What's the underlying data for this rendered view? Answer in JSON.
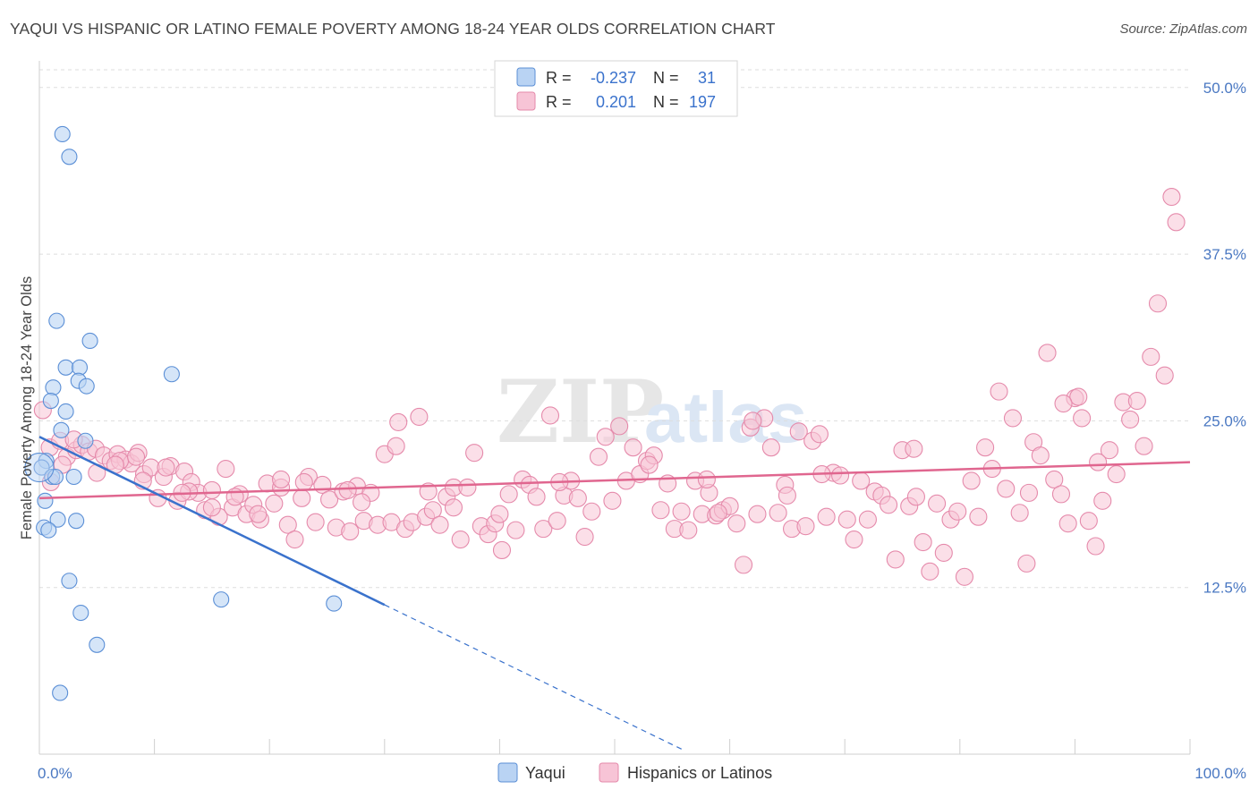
{
  "title": "YAQUI VS HISPANIC OR LATINO FEMALE POVERTY AMONG 18-24 YEAR OLDS CORRELATION CHART",
  "source": "Source: ZipAtlas.com",
  "watermark": {
    "zip": "ZIP",
    "atlas": "atlas"
  },
  "colors": {
    "yaqui_fill": "#b9d3f3",
    "yaqui_stroke": "#5b8fd6",
    "yaqui_line": "#3a72cc",
    "hisp_fill": "#f7c4d6",
    "hisp_stroke": "#e58aab",
    "hisp_line": "#e0668f",
    "axis_label_color": "#4a78c2"
  },
  "legend": {
    "rows": [
      {
        "r_label": "R =",
        "r_value": "-0.237",
        "n_label": "N =",
        "n_value": "31"
      },
      {
        "r_label": "R =",
        "r_value": "0.201",
        "n_label": "N =",
        "n_value": "197"
      }
    ]
  },
  "bottom_legend": [
    "Yaqui",
    "Hispanics or Latinos"
  ],
  "chart_data": {
    "type": "scatter",
    "ylabel": "Female Poverty Among 18-24 Year Olds",
    "xlabel": "",
    "xlim": [
      0,
      100
    ],
    "ylim": [
      0,
      52
    ],
    "x_tick_labels": [
      "0.0%",
      "100.0%"
    ],
    "y_ticks": [
      12.5,
      25.0,
      37.5,
      50.0
    ],
    "y_tick_labels": [
      "12.5%",
      "25.0%",
      "37.5%",
      "50.0%"
    ],
    "grid": true,
    "legend_position": "top-center",
    "series": [
      {
        "name": "Yaqui",
        "trend": {
          "x": [
            0,
            30
          ],
          "y": [
            23.8,
            11.2
          ],
          "dashed_to": [
            56,
            0.3
          ]
        },
        "points": [
          [
            2.0,
            46.5
          ],
          [
            2.6,
            44.8
          ],
          [
            1.5,
            32.5
          ],
          [
            4.4,
            31.0
          ],
          [
            2.3,
            29.0
          ],
          [
            3.5,
            29.0
          ],
          [
            11.5,
            28.5
          ],
          [
            1.2,
            27.5
          ],
          [
            3.4,
            28.0
          ],
          [
            4.1,
            27.6
          ],
          [
            1.0,
            26.5
          ],
          [
            2.3,
            25.7
          ],
          [
            1.9,
            24.3
          ],
          [
            4.0,
            23.5
          ],
          [
            0.6,
            22.0
          ],
          [
            0.2,
            21.5
          ],
          [
            1.1,
            20.8
          ],
          [
            1.4,
            20.8
          ],
          [
            3.0,
            20.8
          ],
          [
            0.5,
            19.0
          ],
          [
            1.6,
            17.6
          ],
          [
            3.2,
            17.5
          ],
          [
            0.4,
            17.0
          ],
          [
            0.8,
            16.8
          ],
          [
            2.6,
            13.0
          ],
          [
            3.6,
            10.6
          ],
          [
            15.8,
            11.6
          ],
          [
            25.6,
            11.3
          ],
          [
            5.0,
            8.2
          ],
          [
            1.8,
            4.6
          ],
          [
            0.0,
            21.5
          ]
        ]
      },
      {
        "name": "Hispanics or Latinos",
        "trend": {
          "x": [
            0,
            100
          ],
          "y": [
            19.2,
            21.9
          ]
        },
        "points": [
          [
            0.3,
            25.8
          ],
          [
            0.9,
            23.0
          ],
          [
            1.8,
            23.5
          ],
          [
            2.4,
            22.3
          ],
          [
            3.2,
            22.8
          ],
          [
            3.7,
            23.2
          ],
          [
            4.3,
            22.7
          ],
          [
            4.9,
            22.9
          ],
          [
            5.6,
            22.4
          ],
          [
            6.2,
            22.0
          ],
          [
            6.8,
            22.5
          ],
          [
            7.5,
            22.1
          ],
          [
            8.0,
            21.8
          ],
          [
            8.6,
            22.6
          ],
          [
            9.1,
            21.0
          ],
          [
            9.7,
            21.5
          ],
          [
            10.3,
            19.2
          ],
          [
            10.8,
            20.8
          ],
          [
            11.4,
            21.6
          ],
          [
            12.0,
            19.0
          ],
          [
            12.6,
            21.2
          ],
          [
            13.2,
            20.4
          ],
          [
            13.8,
            19.6
          ],
          [
            14.4,
            18.3
          ],
          [
            15.0,
            19.8
          ],
          [
            15.6,
            17.8
          ],
          [
            16.2,
            21.4
          ],
          [
            16.8,
            18.5
          ],
          [
            17.4,
            19.5
          ],
          [
            18.0,
            18.0
          ],
          [
            18.6,
            18.7
          ],
          [
            19.2,
            17.6
          ],
          [
            19.8,
            20.3
          ],
          [
            20.4,
            18.8
          ],
          [
            21.0,
            20.0
          ],
          [
            21.6,
            17.2
          ],
          [
            22.2,
            16.1
          ],
          [
            22.8,
            19.2
          ],
          [
            23.4,
            20.8
          ],
          [
            24.0,
            17.4
          ],
          [
            24.6,
            20.2
          ],
          [
            25.2,
            19.1
          ],
          [
            25.8,
            17.0
          ],
          [
            26.4,
            19.7
          ],
          [
            27.0,
            16.7
          ],
          [
            27.6,
            20.1
          ],
          [
            28.2,
            17.5
          ],
          [
            28.8,
            19.6
          ],
          [
            29.4,
            17.2
          ],
          [
            30.0,
            22.5
          ],
          [
            30.6,
            17.4
          ],
          [
            31.2,
            24.9
          ],
          [
            31.8,
            16.9
          ],
          [
            32.4,
            17.4
          ],
          [
            33.0,
            25.3
          ],
          [
            33.6,
            17.8
          ],
          [
            34.2,
            18.3
          ],
          [
            34.8,
            17.2
          ],
          [
            35.4,
            19.3
          ],
          [
            36.0,
            20.0
          ],
          [
            36.6,
            16.1
          ],
          [
            37.2,
            20.0
          ],
          [
            37.8,
            22.6
          ],
          [
            38.4,
            17.1
          ],
          [
            39.0,
            16.5
          ],
          [
            39.6,
            17.3
          ],
          [
            40.2,
            15.3
          ],
          [
            40.8,
            19.5
          ],
          [
            41.4,
            16.8
          ],
          [
            42.0,
            20.6
          ],
          [
            42.6,
            20.2
          ],
          [
            43.2,
            19.3
          ],
          [
            43.8,
            16.9
          ],
          [
            44.4,
            25.4
          ],
          [
            45.0,
            17.5
          ],
          [
            45.6,
            19.4
          ],
          [
            46.2,
            20.5
          ],
          [
            46.8,
            19.2
          ],
          [
            47.4,
            16.3
          ],
          [
            48.0,
            18.2
          ],
          [
            48.6,
            22.3
          ],
          [
            49.2,
            23.8
          ],
          [
            49.8,
            19.0
          ],
          [
            50.4,
            24.6
          ],
          [
            51.0,
            20.5
          ],
          [
            51.6,
            23.0
          ],
          [
            52.2,
            21.0
          ],
          [
            52.8,
            22.0
          ],
          [
            53.4,
            22.4
          ],
          [
            54.0,
            18.3
          ],
          [
            54.6,
            20.3
          ],
          [
            55.2,
            16.9
          ],
          [
            55.8,
            18.2
          ],
          [
            56.4,
            16.8
          ],
          [
            57.0,
            20.5
          ],
          [
            57.6,
            18.0
          ],
          [
            58.2,
            19.6
          ],
          [
            58.8,
            17.9
          ],
          [
            59.4,
            18.3
          ],
          [
            60.0,
            18.6
          ],
          [
            60.6,
            17.3
          ],
          [
            61.2,
            14.2
          ],
          [
            61.8,
            24.5
          ],
          [
            62.4,
            18.0
          ],
          [
            63.0,
            25.2
          ],
          [
            63.6,
            23.0
          ],
          [
            64.2,
            18.1
          ],
          [
            64.8,
            20.2
          ],
          [
            65.4,
            16.9
          ],
          [
            66.0,
            24.2
          ],
          [
            66.6,
            17.1
          ],
          [
            67.2,
            23.5
          ],
          [
            67.8,
            24.0
          ],
          [
            68.4,
            17.8
          ],
          [
            69.0,
            21.1
          ],
          [
            69.6,
            20.9
          ],
          [
            70.2,
            17.6
          ],
          [
            70.8,
            16.1
          ],
          [
            71.4,
            20.5
          ],
          [
            72.0,
            17.6
          ],
          [
            72.6,
            19.7
          ],
          [
            73.2,
            19.4
          ],
          [
            73.8,
            18.7
          ],
          [
            74.4,
            14.6
          ],
          [
            75.0,
            22.8
          ],
          [
            75.6,
            18.6
          ],
          [
            76.2,
            19.3
          ],
          [
            76.8,
            15.9
          ],
          [
            77.4,
            13.7
          ],
          [
            78.0,
            18.8
          ],
          [
            78.6,
            15.1
          ],
          [
            79.2,
            17.6
          ],
          [
            79.8,
            18.2
          ],
          [
            80.4,
            13.3
          ],
          [
            81.0,
            20.5
          ],
          [
            81.6,
            17.8
          ],
          [
            82.2,
            23.0
          ],
          [
            82.8,
            21.4
          ],
          [
            83.4,
            27.2
          ],
          [
            84.0,
            19.9
          ],
          [
            84.6,
            25.2
          ],
          [
            85.2,
            18.1
          ],
          [
            85.8,
            14.3
          ],
          [
            86.4,
            23.4
          ],
          [
            87.0,
            22.4
          ],
          [
            87.6,
            30.1
          ],
          [
            88.2,
            20.6
          ],
          [
            88.8,
            19.5
          ],
          [
            89.4,
            17.3
          ],
          [
            90.0,
            26.7
          ],
          [
            90.6,
            25.2
          ],
          [
            91.2,
            17.5
          ],
          [
            91.8,
            15.6
          ],
          [
            92.4,
            19.0
          ],
          [
            93.0,
            22.8
          ],
          [
            93.6,
            21.0
          ],
          [
            94.2,
            26.4
          ],
          [
            94.8,
            25.1
          ],
          [
            95.4,
            26.5
          ],
          [
            96.0,
            23.1
          ],
          [
            96.6,
            29.8
          ],
          [
            97.2,
            33.8
          ],
          [
            97.8,
            28.4
          ],
          [
            98.4,
            41.8
          ],
          [
            98.8,
            39.9
          ],
          [
            90.3,
            26.8
          ],
          [
            89.0,
            26.3
          ],
          [
            65.0,
            19.4
          ],
          [
            59.0,
            18.1
          ],
          [
            40.0,
            18.0
          ],
          [
            36.0,
            18.5
          ],
          [
            31.0,
            23.1
          ],
          [
            28.0,
            18.9
          ],
          [
            23.0,
            20.4
          ],
          [
            21.0,
            20.6
          ],
          [
            19.0,
            18.0
          ],
          [
            17.0,
            19.3
          ],
          [
            15.0,
            18.5
          ],
          [
            13.0,
            19.7
          ],
          [
            11.0,
            21.5
          ],
          [
            9.0,
            20.5
          ],
          [
            7.0,
            22.0
          ],
          [
            5.0,
            21.1
          ],
          [
            3.0,
            23.6
          ],
          [
            2.0,
            21.7
          ],
          [
            1.0,
            20.4
          ],
          [
            6.6,
            21.7
          ],
          [
            8.4,
            22.3
          ],
          [
            12.4,
            19.6
          ],
          [
            26.8,
            19.8
          ],
          [
            33.8,
            19.7
          ],
          [
            45.2,
            20.4
          ],
          [
            53.0,
            21.7
          ],
          [
            58.0,
            20.6
          ],
          [
            68.0,
            21.0
          ],
          [
            76.0,
            22.9
          ],
          [
            86.0,
            19.6
          ],
          [
            92.0,
            21.9
          ],
          [
            62.0,
            25.0
          ]
        ]
      }
    ]
  }
}
